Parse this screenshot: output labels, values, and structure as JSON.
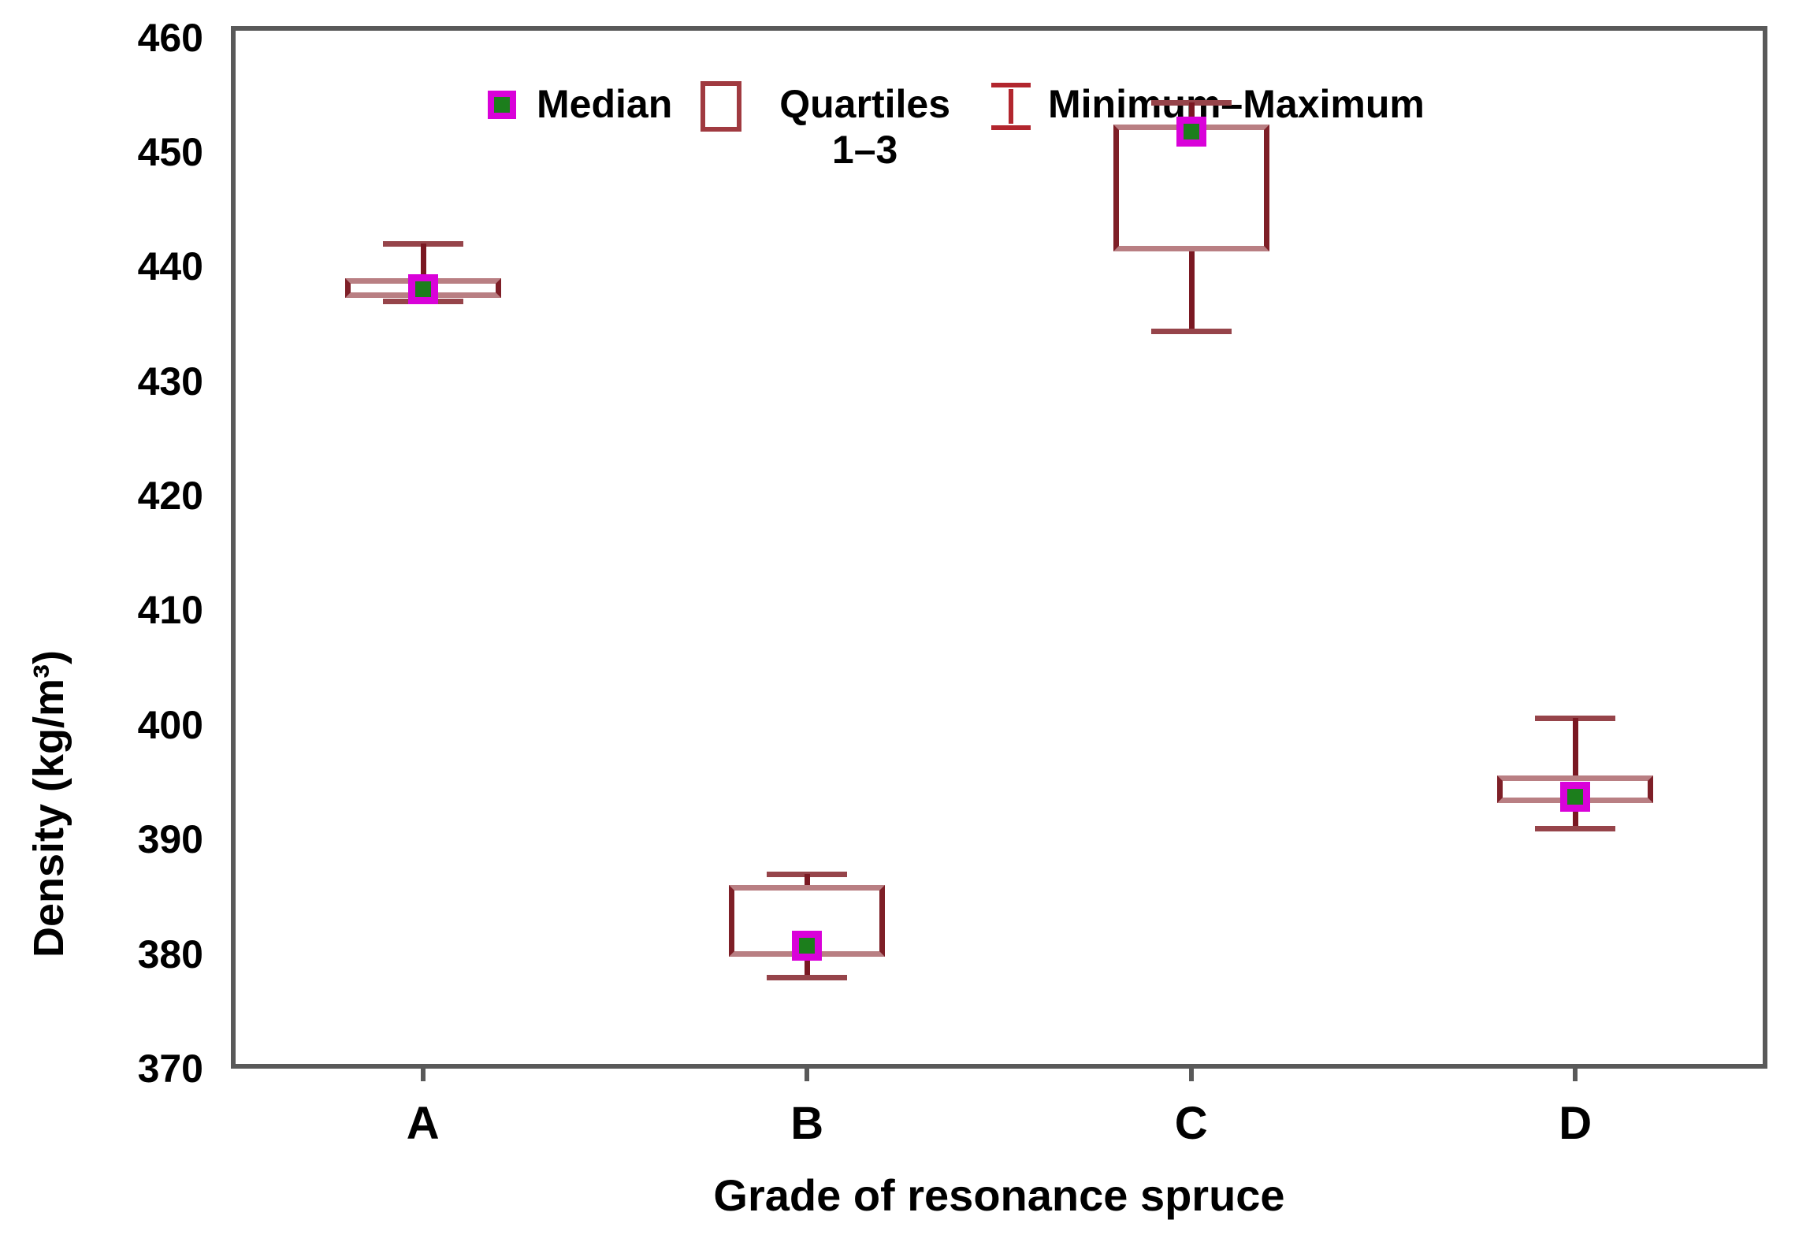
{
  "axes": {
    "y_title": "Density (kg/m³)",
    "x_title": "Grade of resonance spruce"
  },
  "legend": {
    "median": "Median",
    "quartiles_line1": "Quartiles",
    "quartiles_line2": "1–3",
    "minmax": "Minimum–Maximum"
  },
  "chart_data": {
    "type": "boxplot",
    "title": "",
    "xlabel": "Grade of resonance spruce",
    "ylabel": "Density (kg/m³)",
    "ylim": [
      370,
      460
    ],
    "y_ticks": [
      460,
      450,
      440,
      430,
      420,
      410,
      400,
      390,
      380,
      370
    ],
    "categories": [
      "A",
      "B",
      "C",
      "D"
    ],
    "grid": false,
    "legend_position": "top-left-inside",
    "legend_entries": [
      "Median",
      "Quartiles 1–3",
      "Minimum–Maximum"
    ],
    "series": [
      {
        "category": "A",
        "min": 437,
        "q1": 437.3,
        "median": 438,
        "q3": 439,
        "max": 442
      },
      {
        "category": "B",
        "min": 378,
        "q1": 379.8,
        "median": 380.7,
        "q3": 386,
        "max": 387
      },
      {
        "category": "C",
        "min": 434.4,
        "q1": 441.3,
        "median": 451.8,
        "q3": 452.4,
        "max": 454.3
      },
      {
        "category": "D",
        "min": 391,
        "q1": 393.2,
        "median": 393.7,
        "q3": 395.6,
        "max": 400.6
      }
    ],
    "colors": {
      "frame": "#595959",
      "text": "#000000",
      "box_edge_vertical": "#7e1f27",
      "box_edge_horizontal": "#b97f83",
      "whisker_stem": "#7a1822",
      "whisker_cap": "#96444a",
      "median_outer": "#d902d9",
      "median_inner": "#1c7e1c",
      "legend_box": "#a03a40",
      "legend_whisker": "#b2262e"
    }
  }
}
